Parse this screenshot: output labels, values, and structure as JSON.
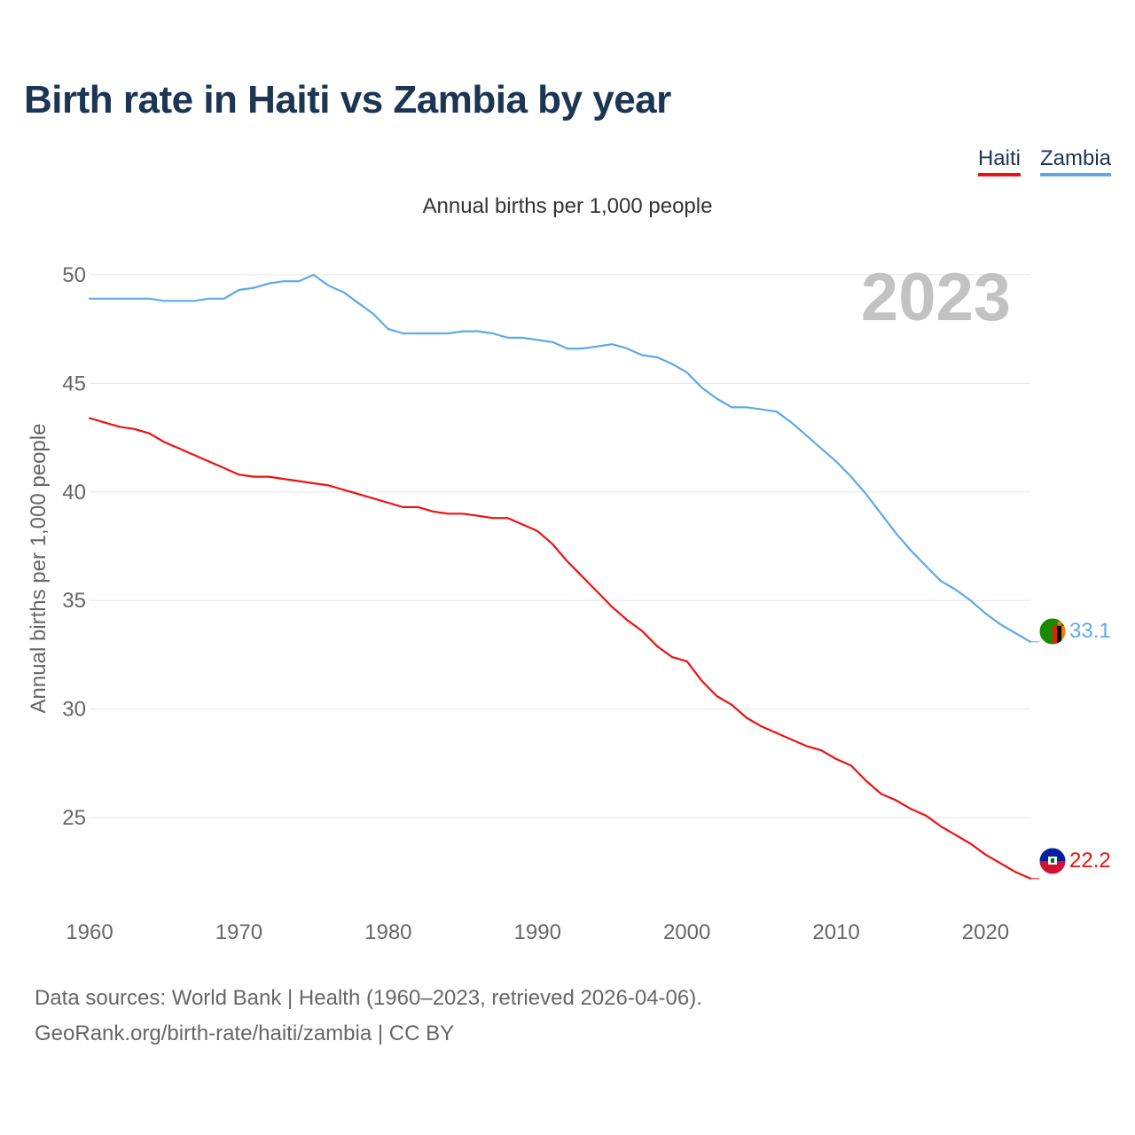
{
  "title": "Birth rate in Haiti vs Zambia by year",
  "legend": [
    {
      "label": "Haiti",
      "color": "#ee1111"
    },
    {
      "label": "Zambia",
      "color": "#5fa8e8"
    }
  ],
  "source": {
    "line1": "Data sources: World Bank | Health (1960–2023, retrieved 2026-04-06).",
    "line2": "GeoRank.org/birth-rate/haiti/zambia | CC BY"
  },
  "chart_data": {
    "type": "line",
    "title": "Birth rate in Haiti vs Zambia by year",
    "subtitle": "Annual births per 1,000 people",
    "ylabel": "Annual births per 1,000 people",
    "xlabel": "",
    "year_label": "2023",
    "xlim": [
      1960,
      2023
    ],
    "ylim": [
      20.8,
      52.2
    ],
    "x_ticks": [
      1960,
      1970,
      1980,
      1990,
      2000,
      2010,
      2020
    ],
    "y_ticks": [
      25,
      30,
      35,
      40,
      45,
      50
    ],
    "grid": true,
    "legend_position": "top-right",
    "x": [
      1960,
      1961,
      1962,
      1963,
      1964,
      1965,
      1966,
      1967,
      1968,
      1969,
      1970,
      1971,
      1972,
      1973,
      1974,
      1975,
      1976,
      1977,
      1978,
      1979,
      1980,
      1981,
      1982,
      1983,
      1984,
      1985,
      1986,
      1987,
      1988,
      1989,
      1990,
      1991,
      1992,
      1993,
      1994,
      1995,
      1996,
      1997,
      1998,
      1999,
      2000,
      2001,
      2002,
      2003,
      2004,
      2005,
      2006,
      2007,
      2008,
      2009,
      2010,
      2011,
      2012,
      2013,
      2014,
      2015,
      2016,
      2017,
      2018,
      2019,
      2020,
      2021,
      2022,
      2023
    ],
    "series": [
      {
        "name": "Haiti",
        "color": "#ee1111",
        "end_label": "22.2",
        "values": [
          43.4,
          43.2,
          43.0,
          42.9,
          42.7,
          42.3,
          42.0,
          41.7,
          41.4,
          41.1,
          40.8,
          40.7,
          40.7,
          40.6,
          40.5,
          40.4,
          40.3,
          40.1,
          39.9,
          39.7,
          39.5,
          39.3,
          39.3,
          39.1,
          39.0,
          39.0,
          38.9,
          38.8,
          38.8,
          38.5,
          38.2,
          37.6,
          36.8,
          36.1,
          35.4,
          34.7,
          34.1,
          33.6,
          32.9,
          32.4,
          32.2,
          31.3,
          30.6,
          30.2,
          29.6,
          29.2,
          28.9,
          28.6,
          28.3,
          28.1,
          27.7,
          27.4,
          26.7,
          26.1,
          25.8,
          25.4,
          25.1,
          24.6,
          24.2,
          23.8,
          23.3,
          22.9,
          22.5,
          22.2
        ]
      },
      {
        "name": "Zambia",
        "color": "#5fa8e8",
        "end_label": "33.1",
        "values": [
          48.9,
          48.9,
          48.9,
          48.9,
          48.9,
          48.8,
          48.8,
          48.8,
          48.9,
          48.9,
          49.3,
          49.4,
          49.6,
          49.7,
          49.7,
          50.0,
          49.5,
          49.2,
          48.7,
          48.2,
          47.5,
          47.3,
          47.3,
          47.3,
          47.3,
          47.4,
          47.4,
          47.3,
          47.1,
          47.1,
          47.0,
          46.9,
          46.6,
          46.6,
          46.7,
          46.8,
          46.6,
          46.3,
          46.2,
          45.9,
          45.5,
          44.8,
          44.3,
          43.9,
          43.9,
          43.8,
          43.7,
          43.2,
          42.6,
          42.0,
          41.4,
          40.7,
          39.9,
          39.0,
          38.1,
          37.3,
          36.6,
          35.9,
          35.5,
          35.0,
          34.4,
          33.9,
          33.5,
          33.1
        ]
      }
    ]
  }
}
